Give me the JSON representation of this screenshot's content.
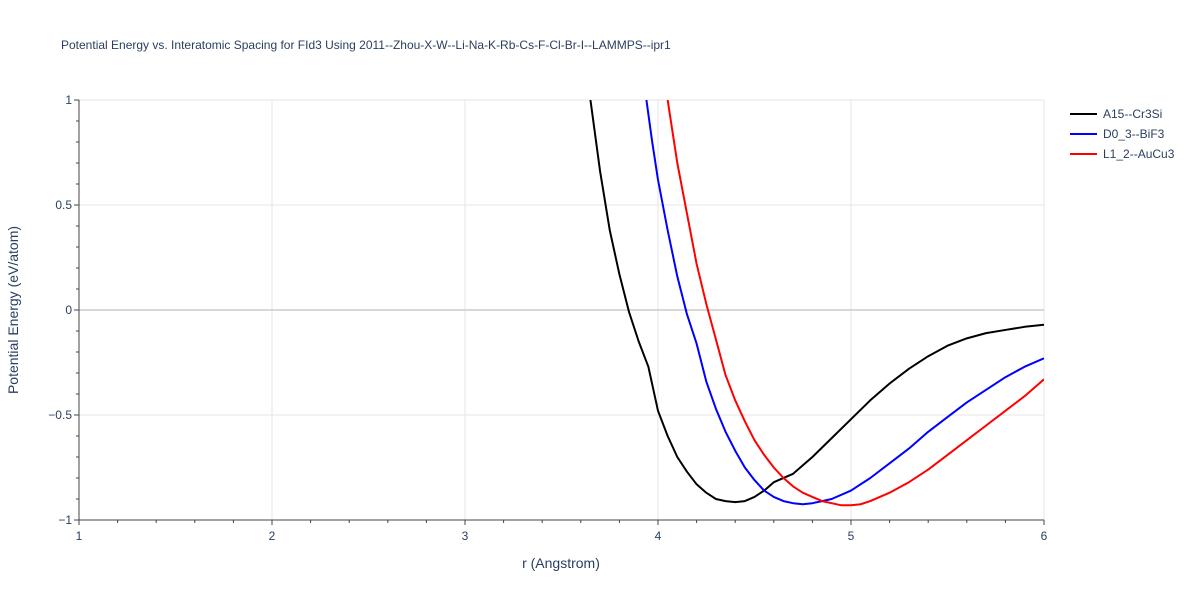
{
  "chart_data": {
    "type": "line",
    "title": "Potential Energy vs. Interatomic Spacing for FId3 Using 2011--Zhou-X-W--Li-Na-K-Rb-Cs-F-Cl-Br-I--LAMMPS--ipr1",
    "xlabel": "r (Angstrom)",
    "ylabel": "Potential Energy (eV/atom)",
    "xlim": [
      1,
      6
    ],
    "ylim": [
      -1,
      1
    ],
    "x_ticks": [
      1,
      2,
      3,
      4,
      5,
      6
    ],
    "x_tick_labels": [
      "1",
      "2",
      "3",
      "4",
      "5",
      "6"
    ],
    "y_ticks": [
      -1,
      -0.5,
      0,
      0.5,
      1
    ],
    "y_tick_labels": [
      "−1",
      "−0.5",
      "0",
      "0.5",
      "1"
    ],
    "grid": true,
    "legend_position": "top-right",
    "series": [
      {
        "name": "A15--Cr3Si",
        "color": "#000000",
        "x": [
          3.65,
          3.7,
          3.75,
          3.8,
          3.85,
          3.9,
          3.95,
          4.0,
          4.05,
          4.1,
          4.15,
          4.2,
          4.25,
          4.3,
          4.35,
          4.4,
          4.45,
          4.5,
          4.55,
          4.6,
          4.7,
          4.8,
          4.9,
          5.0,
          5.1,
          5.2,
          5.3,
          5.4,
          5.5,
          5.6,
          5.7,
          5.8,
          5.9,
          6.0
        ],
        "y": [
          1.0,
          0.66,
          0.38,
          0.17,
          -0.01,
          -0.15,
          -0.27,
          -0.48,
          -0.6,
          -0.7,
          -0.77,
          -0.83,
          -0.87,
          -0.9,
          -0.91,
          -0.915,
          -0.91,
          -0.89,
          -0.86,
          -0.82,
          -0.78,
          -0.7,
          -0.61,
          -0.52,
          -0.43,
          -0.35,
          -0.28,
          -0.22,
          -0.17,
          -0.135,
          -0.11,
          -0.095,
          -0.08,
          -0.07
        ]
      },
      {
        "name": "D0_3--BiF3",
        "color": "#0000ff",
        "x": [
          3.94,
          3.97,
          4.0,
          4.05,
          4.1,
          4.15,
          4.2,
          4.25,
          4.3,
          4.35,
          4.4,
          4.45,
          4.5,
          4.55,
          4.6,
          4.65,
          4.7,
          4.75,
          4.8,
          4.85,
          4.9,
          5.0,
          5.1,
          5.2,
          5.3,
          5.4,
          5.5,
          5.6,
          5.7,
          5.8,
          5.9,
          6.0
        ],
        "y": [
          1.0,
          0.8,
          0.62,
          0.38,
          0.16,
          -0.02,
          -0.16,
          -0.34,
          -0.47,
          -0.58,
          -0.67,
          -0.75,
          -0.81,
          -0.86,
          -0.89,
          -0.91,
          -0.92,
          -0.925,
          -0.92,
          -0.91,
          -0.9,
          -0.86,
          -0.8,
          -0.73,
          -0.66,
          -0.58,
          -0.51,
          -0.44,
          -0.38,
          -0.32,
          -0.27,
          -0.23
        ]
      },
      {
        "name": "L1_2--AuCu3",
        "color": "#ff0000",
        "x": [
          4.05,
          4.08,
          4.1,
          4.15,
          4.2,
          4.25,
          4.3,
          4.35,
          4.4,
          4.45,
          4.5,
          4.55,
          4.6,
          4.65,
          4.7,
          4.75,
          4.8,
          4.85,
          4.9,
          4.95,
          5.0,
          5.05,
          5.1,
          5.2,
          5.3,
          5.4,
          5.5,
          5.6,
          5.7,
          5.8,
          5.9,
          6.0
        ],
        "y": [
          1.0,
          0.82,
          0.7,
          0.46,
          0.22,
          0.03,
          -0.14,
          -0.31,
          -0.43,
          -0.53,
          -0.62,
          -0.69,
          -0.75,
          -0.8,
          -0.84,
          -0.87,
          -0.89,
          -0.91,
          -0.92,
          -0.93,
          -0.93,
          -0.925,
          -0.91,
          -0.87,
          -0.82,
          -0.76,
          -0.69,
          -0.62,
          -0.55,
          -0.48,
          -0.41,
          -0.33
        ]
      }
    ]
  }
}
